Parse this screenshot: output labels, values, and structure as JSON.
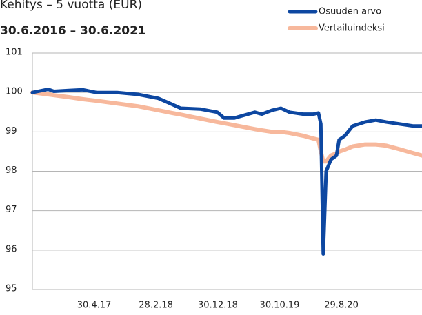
{
  "chart_data": {
    "type": "line",
    "title": "Kehitys – 5 vuotta (EUR)",
    "subtitle": "30.6.2016 – 30.6.2021",
    "x": [
      "2016-06-30",
      "2016-09-16",
      "2016-10-14",
      "2016-12-27",
      "2017-03-04",
      "2017-05-11",
      "2017-08-21",
      "2017-12-02",
      "2018-03-12",
      "2018-05-18",
      "2018-06-30",
      "2018-10-03",
      "2018-12-27",
      "2019-01-30",
      "2019-03-20",
      "2019-06-30",
      "2019-08-03",
      "2019-09-24",
      "2019-11-05",
      "2019-12-18",
      "2020-02-24",
      "2020-04-14",
      "2020-05-08",
      "2020-05-20",
      "2020-06-01",
      "2020-06-15",
      "2020-07-09",
      "2020-08-05",
      "2020-08-18",
      "2020-09-15",
      "2020-10-24",
      "2020-12-24",
      "2021-02-15",
      "2021-04-06",
      "2021-06-12",
      "2021-08-19",
      "2021-09-30"
    ],
    "series": [
      {
        "name": "Osuuden arvo",
        "color": "#0d47a1",
        "values": [
          100.0,
          100.08,
          100.03,
          100.05,
          100.07,
          100.0,
          100.0,
          99.95,
          99.85,
          99.7,
          99.6,
          99.58,
          99.5,
          99.35,
          99.35,
          99.5,
          99.45,
          99.55,
          99.6,
          99.5,
          99.45,
          99.45,
          99.48,
          99.2,
          95.9,
          98.0,
          98.3,
          98.4,
          98.8,
          98.9,
          99.15,
          99.25,
          99.3,
          99.25,
          99.2,
          99.15,
          99.15
        ]
      },
      {
        "name": "Vertailuindeksi",
        "color": "#f7b89c",
        "values": [
          100.0,
          99.95,
          99.93,
          99.88,
          99.83,
          99.79,
          99.72,
          99.65,
          99.55,
          99.48,
          99.44,
          99.34,
          99.25,
          99.22,
          99.17,
          99.07,
          99.04,
          99.0,
          99.0,
          98.97,
          98.9,
          98.83,
          98.8,
          98.5,
          98.25,
          98.25,
          98.4,
          98.46,
          98.5,
          98.55,
          98.63,
          98.68,
          98.68,
          98.65,
          98.56,
          98.46,
          98.4
        ]
      }
    ],
    "xlim": [
      "2016-06-30",
      "2021-09-30"
    ],
    "xticks": [
      {
        "value": "2017-04-30",
        "label": "30.4.17"
      },
      {
        "value": "2018-02-28",
        "label": "28.2.18"
      },
      {
        "value": "2018-12-30",
        "label": "30.12.18"
      },
      {
        "value": "2019-10-30",
        "label": "30.10.19"
      },
      {
        "value": "2020-08-29",
        "label": "29.8.20"
      }
    ],
    "ylim": [
      95,
      101
    ],
    "yticks": [
      95,
      96,
      97,
      98,
      99,
      100,
      101
    ],
    "grid": true,
    "legend": "top-right"
  }
}
